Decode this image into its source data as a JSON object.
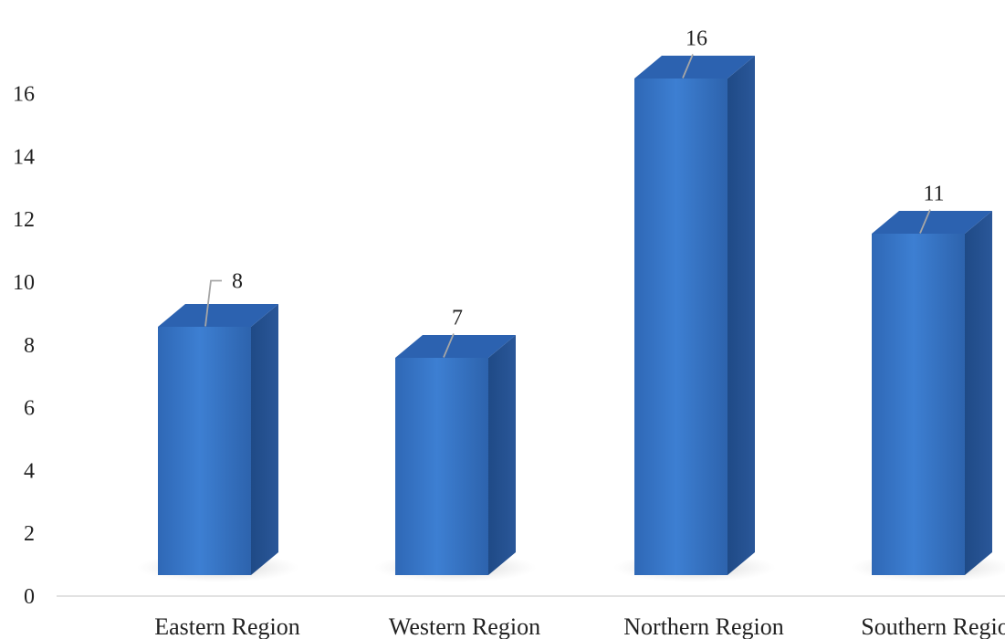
{
  "chart_data": {
    "type": "bar",
    "categories": [
      "Eastern Region",
      "Western Region",
      "Northern Region",
      "Southern Region"
    ],
    "values": [
      8,
      7,
      16,
      11
    ],
    "data_labels": [
      "8",
      "7",
      "16",
      "11"
    ],
    "title": "",
    "xlabel": "",
    "ylabel": "",
    "ylim": [
      0,
      18
    ],
    "yticks": [
      0,
      2,
      4,
      6,
      8,
      10,
      12,
      14,
      16
    ],
    "grid": false,
    "legend": "none",
    "style": "3d-column",
    "colors": {
      "front": "#3a78c8",
      "side": "#23508f",
      "top": "#2c62b0"
    }
  }
}
